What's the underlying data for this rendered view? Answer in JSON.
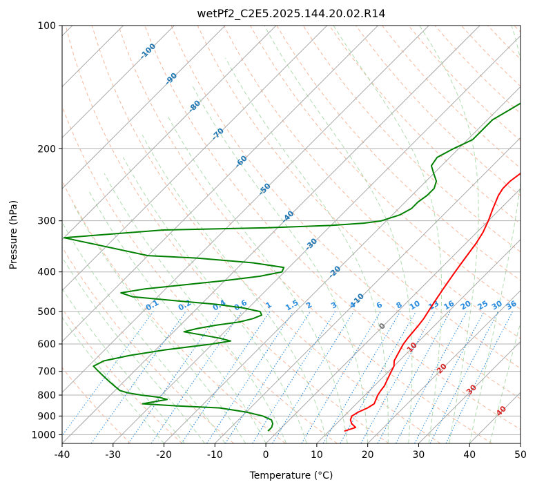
{
  "chart_data": {
    "type": "line",
    "title": "wetPf2_C2E5.2025.144.20.02.R14",
    "xlabel": "Temperature (°C)",
    "ylabel": "Pressure (hPa)",
    "xlim": [
      -40,
      50
    ],
    "ylim": [
      1050,
      100
    ],
    "y_scale": "log",
    "grid": true,
    "x_ticks": [
      -40,
      -30,
      -20,
      -10,
      0,
      10,
      20,
      30,
      40,
      50
    ],
    "y_ticks": [
      100,
      200,
      300,
      400,
      500,
      600,
      700,
      800,
      900,
      1000
    ],
    "skew_isotherm_labels": [
      -100,
      -90,
      -80,
      -70,
      -60,
      -50,
      -40,
      -30,
      -20,
      -10,
      0,
      10,
      20,
      30,
      40
    ],
    "mixing_ratio_labels": [
      "0.1",
      "0.2",
      "0.4",
      "0.6",
      "1",
      "1.5",
      "2",
      "3",
      "4",
      "6",
      "8",
      "10",
      "13",
      "16",
      "20",
      "25",
      "30",
      "36"
    ],
    "series": [
      {
        "color": "#ff0000",
        "points": [
          [
            980,
            13
          ],
          [
            960,
            14.5
          ],
          [
            940,
            13
          ],
          [
            920,
            12
          ],
          [
            900,
            11.5
          ],
          [
            880,
            12
          ],
          [
            860,
            13
          ],
          [
            840,
            13.5
          ],
          [
            820,
            13
          ],
          [
            800,
            12.5
          ],
          [
            780,
            12.2
          ],
          [
            760,
            12
          ],
          [
            740,
            11.5
          ],
          [
            720,
            11
          ],
          [
            700,
            10.5
          ],
          [
            680,
            10
          ],
          [
            660,
            9
          ],
          [
            640,
            8.5
          ],
          [
            620,
            8
          ],
          [
            600,
            7.5
          ],
          [
            580,
            7.2
          ],
          [
            560,
            7
          ],
          [
            540,
            6.8
          ],
          [
            520,
            6.5
          ],
          [
            500,
            6
          ],
          [
            480,
            5.5
          ],
          [
            460,
            5
          ],
          [
            440,
            4.5
          ],
          [
            420,
            4
          ],
          [
            400,
            3.5
          ],
          [
            380,
            3
          ],
          [
            360,
            2.5
          ],
          [
            340,
            2
          ],
          [
            320,
            1.2
          ],
          [
            300,
            0
          ],
          [
            280,
            -1.5
          ],
          [
            260,
            -3
          ],
          [
            250,
            -3.5
          ],
          [
            240,
            -3.5
          ],
          [
            230,
            -3
          ],
          [
            220,
            -3
          ],
          [
            210,
            -3.5
          ],
          [
            200,
            -4
          ],
          [
            190,
            -5
          ],
          [
            180,
            -6
          ],
          [
            170,
            -7
          ],
          [
            160,
            -8.5
          ],
          [
            150,
            -10
          ],
          [
            140,
            -12
          ],
          [
            130,
            -14
          ],
          [
            120,
            -17
          ],
          [
            110,
            -20
          ],
          [
            100,
            -24
          ]
        ]
      },
      {
        "color": "#008000",
        "points": [
          [
            980,
            -2
          ],
          [
            960,
            -2
          ],
          [
            940,
            -2.5
          ],
          [
            920,
            -3.5
          ],
          [
            900,
            -6
          ],
          [
            880,
            -10
          ],
          [
            860,
            -16
          ],
          [
            850,
            -25
          ],
          [
            840,
            -32
          ],
          [
            830,
            -30
          ],
          [
            820,
            -28
          ],
          [
            810,
            -30
          ],
          [
            800,
            -34
          ],
          [
            790,
            -37
          ],
          [
            780,
            -39
          ],
          [
            760,
            -41
          ],
          [
            740,
            -43
          ],
          [
            720,
            -45
          ],
          [
            700,
            -47
          ],
          [
            680,
            -49
          ],
          [
            660,
            -48
          ],
          [
            640,
            -44
          ],
          [
            620,
            -38
          ],
          [
            600,
            -30
          ],
          [
            590,
            -27
          ],
          [
            580,
            -30
          ],
          [
            570,
            -34
          ],
          [
            560,
            -38
          ],
          [
            550,
            -36
          ],
          [
            540,
            -33
          ],
          [
            530,
            -29
          ],
          [
            520,
            -27
          ],
          [
            510,
            -26
          ],
          [
            500,
            -27
          ],
          [
            490,
            -31
          ],
          [
            480,
            -37
          ],
          [
            470,
            -46
          ],
          [
            460,
            -55
          ],
          [
            450,
            -58
          ],
          [
            440,
            -54
          ],
          [
            430,
            -47
          ],
          [
            420,
            -40
          ],
          [
            410,
            -34
          ],
          [
            400,
            -30.5
          ],
          [
            390,
            -31
          ],
          [
            380,
            -38
          ],
          [
            370,
            -50
          ],
          [
            365,
            -60
          ],
          [
            330,
            -80
          ],
          [
            316,
            -62
          ],
          [
            312,
            -42
          ],
          [
            308,
            -30
          ],
          [
            304,
            -24
          ],
          [
            300,
            -21
          ],
          [
            290,
            -18.5
          ],
          [
            280,
            -17.5
          ],
          [
            270,
            -17.5
          ],
          [
            260,
            -17
          ],
          [
            250,
            -17
          ],
          [
            240,
            -18
          ],
          [
            230,
            -20
          ],
          [
            220,
            -22
          ],
          [
            210,
            -22.5
          ],
          [
            200,
            -21
          ],
          [
            190,
            -19
          ],
          [
            180,
            -19
          ],
          [
            170,
            -19
          ],
          [
            160,
            -17.5
          ],
          [
            150,
            -16
          ],
          [
            140,
            -15.5
          ],
          [
            130,
            -15.5
          ],
          [
            120,
            -14.5
          ],
          [
            110,
            -13
          ],
          [
            100,
            -11
          ]
        ]
      }
    ]
  }
}
